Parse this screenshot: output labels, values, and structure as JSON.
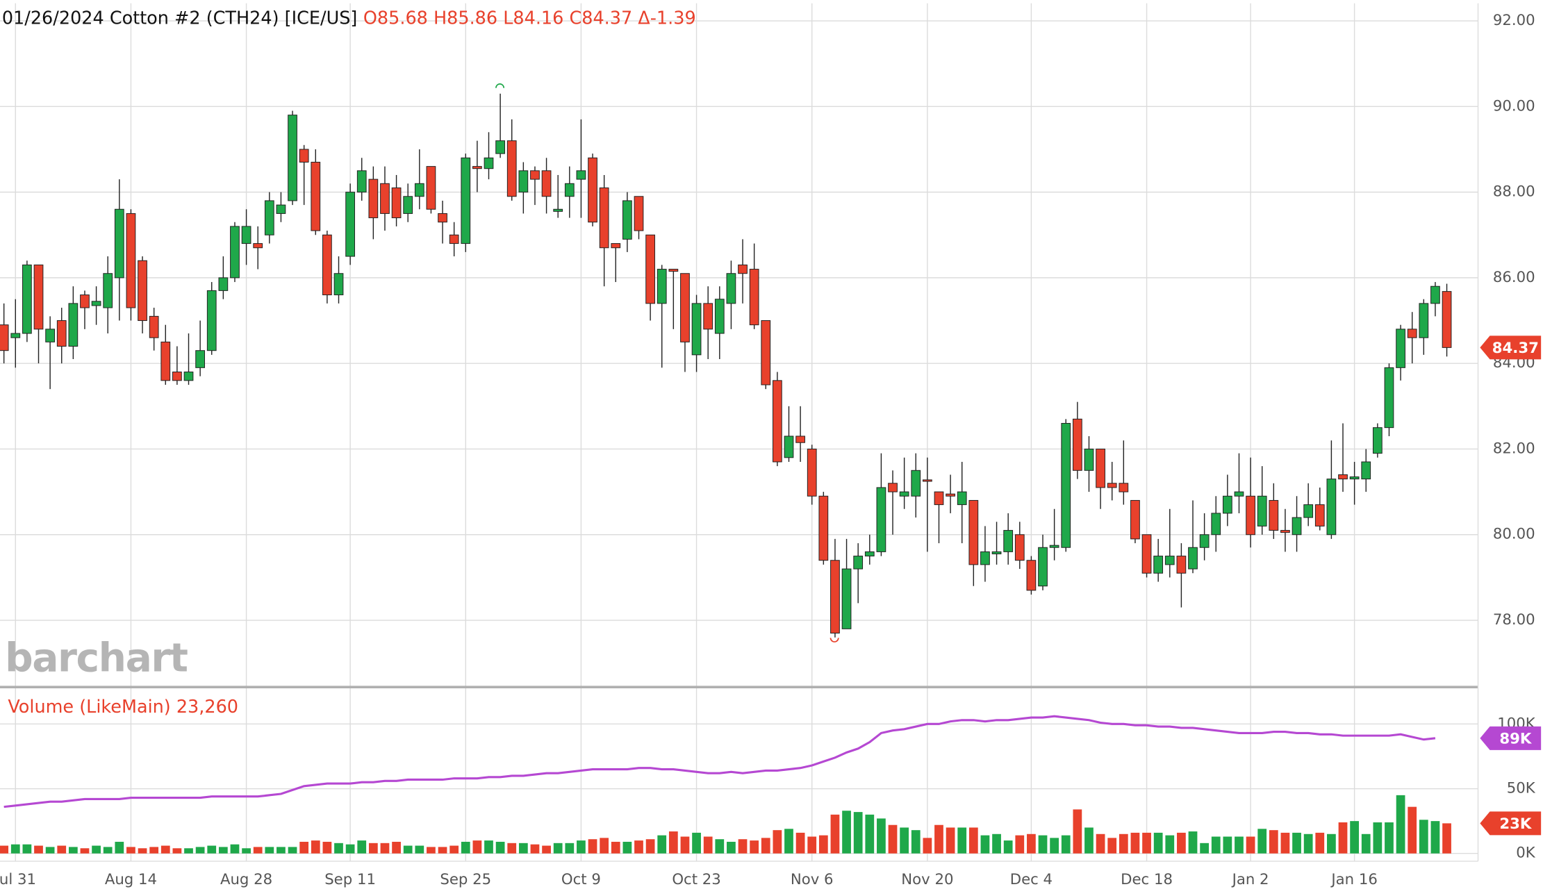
{
  "chart_data": [
    {
      "type": "candlestick",
      "title": "01/26/2024 Cotton #2 (CTH24) [ICE/US]",
      "subtitle": "O85.68 H85.86 L84.16 C84.37 Δ-1.39",
      "watermark": "barchart",
      "up_color": "#1fa84a",
      "down_color": "#e8412c",
      "ylim": [
        76.44,
        92.41
      ],
      "yticks": [
        {
          "value": 78,
          "label": "78.00"
        },
        {
          "value": 80,
          "label": "80.00"
        },
        {
          "value": 82,
          "label": "82.00"
        },
        {
          "value": 84,
          "label": "84.00"
        },
        {
          "value": 86,
          "label": "86.00"
        },
        {
          "value": 88,
          "label": "88.00"
        },
        {
          "value": 90,
          "label": "90.00"
        },
        {
          "value": 92,
          "label": "92.00"
        }
      ],
      "grid": true,
      "categories": [
        null,
        "Jul 31",
        null,
        null,
        null,
        null,
        null,
        null,
        null,
        null,
        null,
        "Aug 14",
        null,
        null,
        null,
        null,
        null,
        null,
        null,
        null,
        null,
        "Aug 28",
        null,
        null,
        null,
        null,
        null,
        null,
        null,
        null,
        "Sep 11",
        null,
        null,
        null,
        null,
        null,
        null,
        null,
        null,
        null,
        "Sep 25",
        null,
        null,
        null,
        null,
        null,
        null,
        null,
        null,
        null,
        "Oct 9",
        null,
        null,
        null,
        null,
        null,
        null,
        null,
        null,
        null,
        "Oct 23",
        null,
        null,
        null,
        null,
        null,
        null,
        null,
        null,
        null,
        "Nov 6",
        null,
        null,
        null,
        null,
        null,
        null,
        null,
        null,
        null,
        "Nov 20",
        null,
        null,
        null,
        null,
        null,
        null,
        null,
        null,
        "Dec 4",
        null,
        null,
        null,
        null,
        null,
        null,
        null,
        null,
        null,
        "Dec 18",
        null,
        null,
        null,
        null,
        null,
        null,
        null,
        null,
        "Jan 2",
        null,
        null,
        null,
        null,
        null,
        null,
        null,
        null,
        "Jan 16",
        null,
        null,
        null,
        null,
        null,
        null,
        null,
        null
      ],
      "open": [
        84.9,
        84.6,
        84.7,
        86.3,
        84.5,
        85.0,
        84.4,
        85.6,
        85.35,
        85.3,
        86.0,
        87.5,
        86.4,
        85.1,
        84.5,
        83.8,
        83.6,
        83.9,
        84.3,
        85.7,
        86.0,
        86.8,
        86.8,
        87.0,
        87.5,
        87.8,
        89.0,
        88.7,
        87.0,
        85.6,
        86.5,
        88.0,
        88.3,
        88.2,
        88.1,
        87.5,
        87.9,
        88.6,
        87.5,
        87.0,
        86.8,
        88.6,
        88.55,
        88.9,
        89.2,
        88.0,
        88.5,
        88.5,
        87.55,
        87.9,
        88.3,
        88.8,
        88.1,
        86.8,
        86.9,
        87.9,
        87.0,
        85.4,
        86.2,
        86.1,
        84.2,
        85.4,
        84.7,
        85.4,
        86.3,
        86.2,
        85.0,
        83.6,
        81.8,
        82.3,
        82.0,
        80.9,
        79.4,
        77.8,
        79.2,
        79.5,
        79.6,
        81.2,
        80.9,
        80.9,
        81.28,
        81.0,
        80.95,
        80.7,
        80.8,
        79.3,
        79.55,
        79.6,
        80.0,
        79.4,
        78.8,
        79.7,
        79.7,
        82.7,
        81.5,
        82.0,
        81.2,
        81.2,
        80.8,
        80.0,
        79.1,
        79.3,
        79.5,
        79.2,
        79.7,
        80.0,
        80.5,
        80.9,
        80.9,
        80.2,
        80.8,
        80.1,
        80.0,
        80.4,
        80.7,
        80.0,
        81.4,
        81.3,
        81.3,
        81.9,
        82.5,
        83.9,
        84.8,
        84.6,
        85.4,
        85.68
      ],
      "high": [
        85.4,
        85.5,
        86.4,
        86.3,
        85.1,
        85.3,
        85.8,
        85.7,
        85.8,
        86.5,
        88.3,
        87.6,
        86.5,
        85.3,
        84.9,
        84.4,
        84.7,
        85.0,
        85.9,
        86.5,
        87.3,
        87.6,
        87.2,
        88.0,
        88.0,
        89.9,
        89.1,
        89.0,
        87.1,
        86.5,
        88.2,
        88.8,
        88.6,
        88.6,
        88.4,
        88.2,
        89.0,
        88.6,
        87.8,
        87.3,
        88.9,
        89.2,
        89.4,
        90.3,
        89.7,
        88.7,
        88.6,
        88.8,
        88.4,
        88.6,
        89.7,
        88.9,
        88.4,
        86.8,
        88.0,
        87.9,
        87.0,
        86.3,
        86.2,
        86.1,
        85.6,
        85.8,
        85.8,
        86.4,
        86.9,
        86.8,
        85.0,
        83.8,
        83.0,
        83.0,
        82.1,
        81.0,
        79.9,
        79.9,
        79.8,
        80.0,
        81.9,
        81.5,
        81.8,
        81.9,
        81.8,
        81.0,
        81.4,
        81.7,
        80.8,
        80.2,
        80.3,
        80.5,
        80.3,
        79.5,
        80.0,
        80.6,
        82.7,
        83.1,
        82.3,
        82.0,
        81.7,
        82.2,
        80.8,
        80.0,
        79.9,
        80.6,
        79.8,
        80.8,
        80.5,
        80.9,
        81.4,
        81.9,
        81.8,
        81.6,
        81.2,
        80.6,
        80.9,
        81.2,
        81.1,
        82.2,
        82.6,
        81.7,
        82.0,
        82.6,
        84.0,
        84.9,
        85.2,
        85.5,
        85.9,
        85.86
      ],
      "low": [
        84.0,
        83.9,
        84.5,
        84.0,
        83.4,
        84.0,
        84.1,
        84.8,
        84.9,
        84.7,
        85.0,
        85.0,
        84.7,
        84.3,
        83.5,
        83.5,
        83.5,
        83.7,
        84.2,
        85.5,
        85.9,
        86.3,
        86.2,
        86.8,
        87.3,
        87.7,
        87.7,
        87.0,
        85.4,
        85.4,
        86.3,
        87.8,
        86.9,
        87.1,
        87.2,
        87.3,
        87.6,
        87.5,
        86.8,
        86.5,
        86.6,
        88.0,
        88.3,
        88.8,
        87.8,
        87.5,
        87.7,
        87.5,
        87.4,
        87.4,
        87.4,
        87.2,
        85.8,
        85.9,
        86.6,
        86.9,
        85.0,
        83.9,
        84.8,
        83.8,
        83.8,
        84.1,
        84.1,
        84.8,
        85.4,
        84.8,
        83.4,
        81.6,
        81.7,
        81.7,
        80.7,
        79.3,
        77.6,
        77.8,
        78.4,
        79.3,
        79.5,
        80.0,
        80.6,
        80.4,
        79.6,
        79.8,
        80.5,
        79.8,
        78.8,
        78.9,
        79.3,
        79.3,
        79.2,
        78.6,
        78.7,
        79.4,
        79.6,
        81.3,
        81.0,
        80.6,
        80.8,
        80.7,
        79.8,
        79.0,
        78.9,
        79.0,
        78.3,
        79.1,
        79.4,
        79.6,
        80.2,
        80.5,
        79.7,
        80.0,
        79.9,
        79.6,
        79.6,
        80.2,
        80.1,
        79.9,
        81.0,
        80.7,
        81.0,
        81.8,
        82.3,
        83.6,
        84.0,
        84.2,
        85.1,
        84.16
      ],
      "close": [
        84.3,
        84.7,
        86.3,
        84.8,
        84.8,
        84.4,
        85.4,
        85.3,
        85.45,
        86.1,
        87.6,
        85.3,
        85.0,
        84.6,
        83.6,
        83.6,
        83.8,
        84.3,
        85.7,
        86.0,
        87.2,
        87.2,
        86.7,
        87.8,
        87.7,
        89.8,
        88.7,
        87.1,
        85.6,
        86.1,
        88.0,
        88.5,
        87.4,
        87.5,
        87.4,
        87.9,
        88.2,
        87.6,
        87.3,
        86.8,
        88.8,
        88.55,
        88.8,
        89.2,
        87.9,
        88.5,
        88.3,
        87.9,
        87.6,
        88.2,
        88.5,
        87.3,
        86.7,
        86.7,
        87.8,
        87.1,
        85.4,
        86.2,
        86.15,
        84.5,
        85.4,
        84.8,
        85.5,
        86.1,
        86.1,
        84.9,
        83.5,
        81.7,
        82.3,
        82.15,
        80.9,
        79.4,
        77.7,
        79.2,
        79.5,
        79.6,
        81.1,
        81.0,
        81.0,
        81.5,
        81.25,
        80.7,
        80.9,
        81.0,
        79.3,
        79.6,
        79.6,
        80.1,
        79.4,
        78.7,
        79.7,
        79.75,
        82.6,
        81.5,
        82.0,
        81.1,
        81.1,
        81.0,
        79.9,
        79.1,
        79.5,
        79.5,
        79.1,
        79.7,
        80.0,
        80.5,
        80.9,
        81.0,
        80.0,
        80.9,
        80.1,
        80.05,
        80.4,
        80.7,
        80.2,
        81.3,
        81.3,
        81.35,
        81.7,
        82.5,
        83.9,
        84.8,
        84.6,
        85.4,
        85.8,
        84.37
      ]
    },
    {
      "type": "bar",
      "title": "Volume  (LikeMain) 23,260",
      "ylim": [
        -6000,
        127000
      ],
      "yticks": [
        {
          "value": 0,
          "label": "0K"
        },
        {
          "value": 50000,
          "label": "50K"
        },
        {
          "value": 100000,
          "label": "100K"
        }
      ],
      "values": [
        6000,
        7000,
        7000,
        6000,
        5000,
        6000,
        5000,
        4000,
        6000,
        5000,
        9000,
        5000,
        4000,
        5000,
        6000,
        4000,
        4000,
        5000,
        6000,
        5000,
        7000,
        4000,
        5000,
        5000,
        5000,
        5000,
        9000,
        10000,
        9000,
        8000,
        7000,
        10000,
        8000,
        8000,
        9000,
        6000,
        6000,
        5000,
        5000,
        6000,
        9000,
        10000,
        10000,
        9000,
        8000,
        8000,
        7000,
        6000,
        8000,
        8000,
        10000,
        11000,
        12000,
        9000,
        9000,
        10000,
        11000,
        14000,
        17000,
        13000,
        16000,
        13000,
        11000,
        9000,
        11000,
        10000,
        12000,
        18000,
        19000,
        16000,
        13000,
        14000,
        30000,
        33000,
        32000,
        30000,
        27000,
        22000,
        20000,
        18000,
        12000,
        22000,
        20000,
        20000,
        20000,
        14000,
        15000,
        10000,
        14000,
        15000,
        14000,
        12000,
        14000,
        34000,
        20000,
        15000,
        12000,
        15000,
        16000,
        16000,
        16000,
        14000,
        16000,
        17000,
        8000,
        13000,
        13000,
        13000,
        13000,
        19000,
        18000,
        16000,
        16000,
        15000,
        16000,
        15000,
        24000,
        25000,
        15000,
        24000,
        24000,
        45000,
        36000,
        26000,
        25000,
        23260
      ],
      "value_labels": [
        null,
        null,
        null,
        null,
        null,
        null,
        null,
        null,
        null,
        null,
        null,
        null,
        null,
        null,
        null,
        null,
        null,
        null,
        null,
        null,
        null,
        null,
        null,
        null,
        null,
        null,
        null,
        null,
        null,
        null,
        null,
        null,
        null,
        null,
        null,
        null,
        null,
        null,
        null,
        null,
        null,
        null,
        null,
        null,
        null,
        null,
        null,
        null,
        null,
        null,
        null,
        null,
        null,
        null,
        null,
        null,
        null,
        null,
        null,
        null,
        null,
        null,
        null,
        null,
        null,
        null,
        null,
        null,
        null,
        null,
        null,
        null,
        null,
        null,
        null,
        null,
        null,
        null,
        null,
        null,
        null,
        null,
        null,
        null,
        null,
        null,
        null,
        null,
        null,
        null,
        null,
        null,
        null,
        null,
        null,
        null,
        null,
        null,
        null,
        null,
        null,
        null,
        null,
        null,
        null,
        null,
        null,
        null,
        null,
        null,
        null,
        null,
        null,
        null,
        null,
        null,
        null,
        null,
        null,
        null,
        null,
        null,
        null,
        null,
        null,
        "23K"
      ],
      "line": {
        "color": "#b548d2",
        "values": [
          36000,
          37000,
          38000,
          39000,
          40000,
          40000,
          41000,
          42000,
          42000,
          42000,
          42000,
          43000,
          43000,
          43000,
          43000,
          43000,
          43000,
          43000,
          44000,
          44000,
          44000,
          44000,
          44000,
          45000,
          46000,
          49000,
          52000,
          53000,
          54000,
          54000,
          54000,
          55000,
          55000,
          56000,
          56000,
          57000,
          57000,
          57000,
          57000,
          58000,
          58000,
          58000,
          59000,
          59000,
          60000,
          60000,
          61000,
          62000,
          62000,
          63000,
          64000,
          65000,
          65000,
          65000,
          65000,
          66000,
          66000,
          65000,
          65000,
          64000,
          63000,
          62000,
          62000,
          63000,
          62000,
          63000,
          64000,
          64000,
          65000,
          66000,
          68000,
          71000,
          74000,
          78000,
          81000,
          86000,
          93000,
          95000,
          96000,
          98000,
          100000,
          100000,
          102000,
          103000,
          103000,
          102000,
          103000,
          103000,
          104000,
          105000,
          105000,
          106000,
          105000,
          104000,
          103000,
          101000,
          100000,
          100000,
          99000,
          99000,
          98000,
          98000,
          97000,
          97000,
          96000,
          95000,
          94000,
          93000,
          93000,
          93000,
          94000,
          94000,
          93000,
          93000,
          92000,
          92000,
          91000,
          91000,
          91000,
          91000,
          91000,
          92000,
          90000,
          88000,
          89000,
          null
        ],
        "value_labels": [
          null,
          null,
          null,
          null,
          null,
          null,
          null,
          null,
          null,
          null,
          null,
          null,
          null,
          null,
          null,
          null,
          null,
          null,
          null,
          null,
          null,
          null,
          null,
          null,
          null,
          null,
          null,
          null,
          null,
          null,
          null,
          null,
          null,
          null,
          null,
          null,
          null,
          null,
          null,
          null,
          null,
          null,
          null,
          null,
          null,
          null,
          null,
          null,
          null,
          null,
          null,
          null,
          null,
          null,
          null,
          null,
          null,
          null,
          null,
          null,
          null,
          null,
          null,
          null,
          null,
          null,
          null,
          null,
          null,
          null,
          null,
          null,
          null,
          null,
          null,
          null,
          null,
          null,
          null,
          null,
          null,
          null,
          null,
          null,
          null,
          null,
          null,
          null,
          null,
          null,
          null,
          null,
          null,
          null,
          null,
          null,
          null,
          null,
          null,
          null,
          null,
          null,
          null,
          null,
          null,
          null,
          null,
          null,
          null,
          null,
          null,
          null,
          null,
          null,
          null,
          null,
          null,
          null,
          null,
          null,
          null,
          null,
          null,
          null,
          "89K",
          null
        ]
      }
    }
  ]
}
